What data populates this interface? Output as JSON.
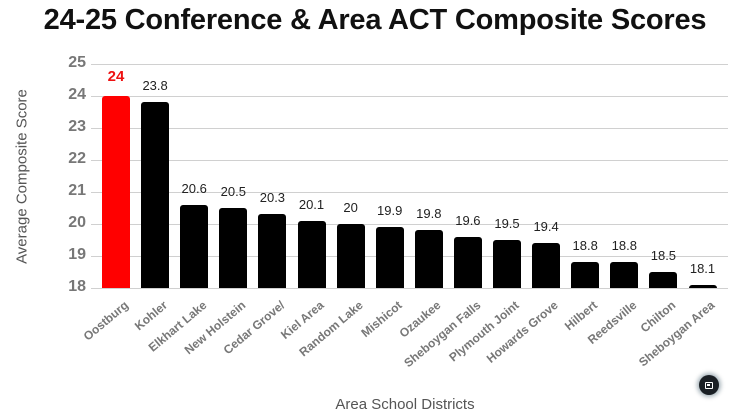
{
  "chart_data": {
    "type": "bar",
    "title": "24-25 Conference & Area ACT Composite Scores",
    "xlabel": "Area School Districts",
    "ylabel": "Average Composite Score",
    "ylim": [
      18,
      25
    ],
    "yticks": [
      25,
      24,
      23,
      22,
      21,
      20,
      19,
      18
    ],
    "grid": true,
    "legend": "none",
    "categories": [
      "Oostburg",
      "Kohler",
      "Elkhart Lake",
      "New Holstein",
      "Cedar Grove/",
      "Kiel Area",
      "Random Lake",
      "Mishicot",
      "Ozaukee",
      "Sheboygan Falls",
      "Plymouth Joint",
      "Howards Grove",
      "Hilbert",
      "Reedsville",
      "Chilton",
      "Sheboygan Area"
    ],
    "values": [
      24,
      23.8,
      20.6,
      20.5,
      20.3,
      20.1,
      20,
      19.9,
      19.8,
      19.6,
      19.5,
      19.4,
      18.8,
      18.8,
      18.5,
      18.1
    ],
    "value_labels": [
      "24",
      "23.8",
      "20.6",
      "20.5",
      "20.3",
      "20.1",
      "20",
      "19.9",
      "19.8",
      "19.6",
      "19.5",
      "19.4",
      "18.8",
      "18.8",
      "18.5",
      "18.1"
    ],
    "highlight_index": 0,
    "colors": {
      "highlight": "#ff0000",
      "default": "#000000",
      "highlight_label": "#ee1111"
    }
  },
  "ui": {
    "corner_button": "fullscreen-toggle"
  }
}
